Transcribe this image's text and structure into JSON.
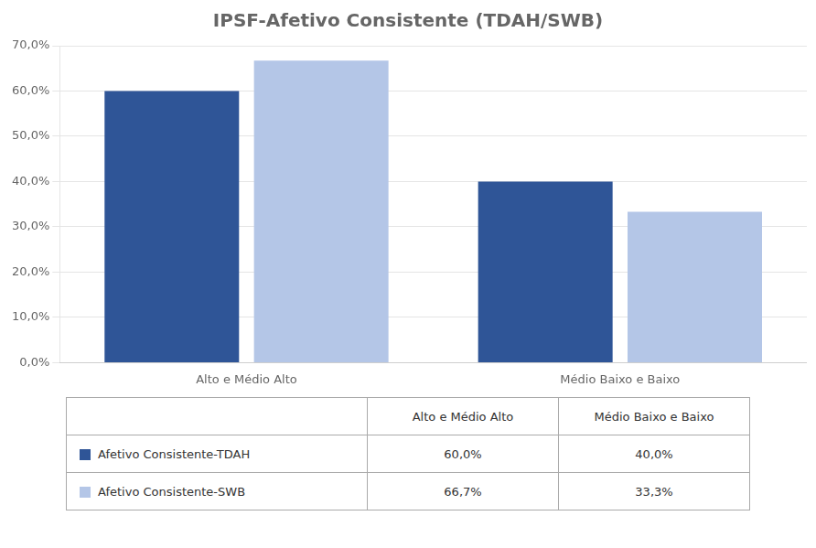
{
  "chart_data": {
    "type": "bar",
    "title": "IPSF-Afetivo Consistente (TDAH/SWB)",
    "categories": [
      "Alto e Médio Alto",
      "Médio Baixo e Baixo"
    ],
    "series": [
      {
        "name": "Afetivo Consistente-TDAH",
        "color": "#2F5597",
        "values": [
          0.6,
          0.4
        ],
        "value_labels": [
          "60,0%",
          "40,0%"
        ]
      },
      {
        "name": "Afetivo Consistente-SWB",
        "color": "#B4C6E7",
        "values": [
          0.667,
          0.333
        ],
        "value_labels": [
          "66,7%",
          "33,3%"
        ]
      }
    ],
    "ylim": [
      0,
      0.7
    ],
    "yticks": [
      {
        "value": 0.0,
        "label": "0,0%"
      },
      {
        "value": 0.1,
        "label": "10,0%"
      },
      {
        "value": 0.2,
        "label": "20,0%"
      },
      {
        "value": 0.3,
        "label": "30,0%"
      },
      {
        "value": 0.4,
        "label": "40,0%"
      },
      {
        "value": 0.5,
        "label": "50,0%"
      },
      {
        "value": 0.6,
        "label": "60,0%"
      },
      {
        "value": 0.7,
        "label": "70,0%"
      }
    ],
    "grid": true,
    "legend": "bottom"
  }
}
